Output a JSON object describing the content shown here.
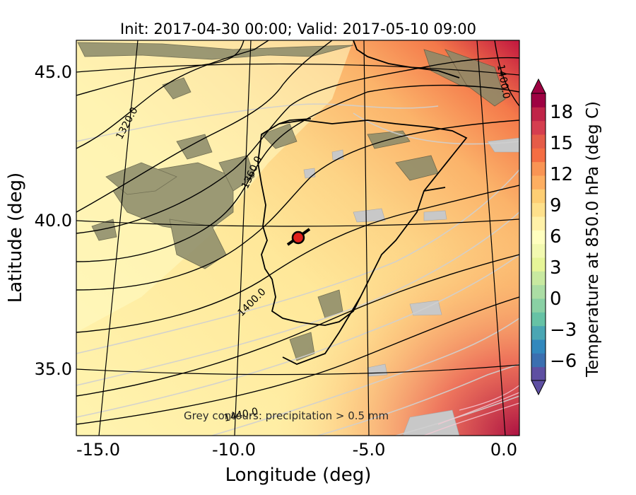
{
  "title": "Init: 2017-04-30 00:00; Valid: 2017-05-10 09:00",
  "x_axis": {
    "label": "Longitude (deg)",
    "ticks": [
      "-15.0",
      "-10.0",
      "-5.0",
      "0.0"
    ]
  },
  "y_axis": {
    "label": "Latitude (deg)",
    "ticks": [
      "35.0",
      "40.0",
      "45.0"
    ]
  },
  "colorbar": {
    "label": "Temperature at 850.0 hPa (deg C)",
    "ticks": [
      "18",
      "15",
      "12",
      "9",
      "6",
      "3",
      "0",
      "−3",
      "−6"
    ],
    "colors": [
      "#5e4fa2",
      "#3b6fb0",
      "#3288bd",
      "#4aa6b3",
      "#66c2a5",
      "#89d0a4",
      "#abdda4",
      "#c8e9a0",
      "#e6f598",
      "#f2f9b0",
      "#ffffbf",
      "#fff1a8",
      "#fee08b",
      "#fdce74",
      "#fdae61",
      "#f99454",
      "#f46d43",
      "#e55c48",
      "#d53e4f",
      "#c02448",
      "#9e0142"
    ]
  },
  "contour_labels": [
    "1320.0",
    "1360.0",
    "1400.0",
    "1400.0",
    "1440.0"
  ],
  "annotation": "Grey contours: precipitation > 0.5 mm",
  "marker": {
    "lon": -7.6,
    "lat": 39.3,
    "color": "#e0201b"
  }
}
